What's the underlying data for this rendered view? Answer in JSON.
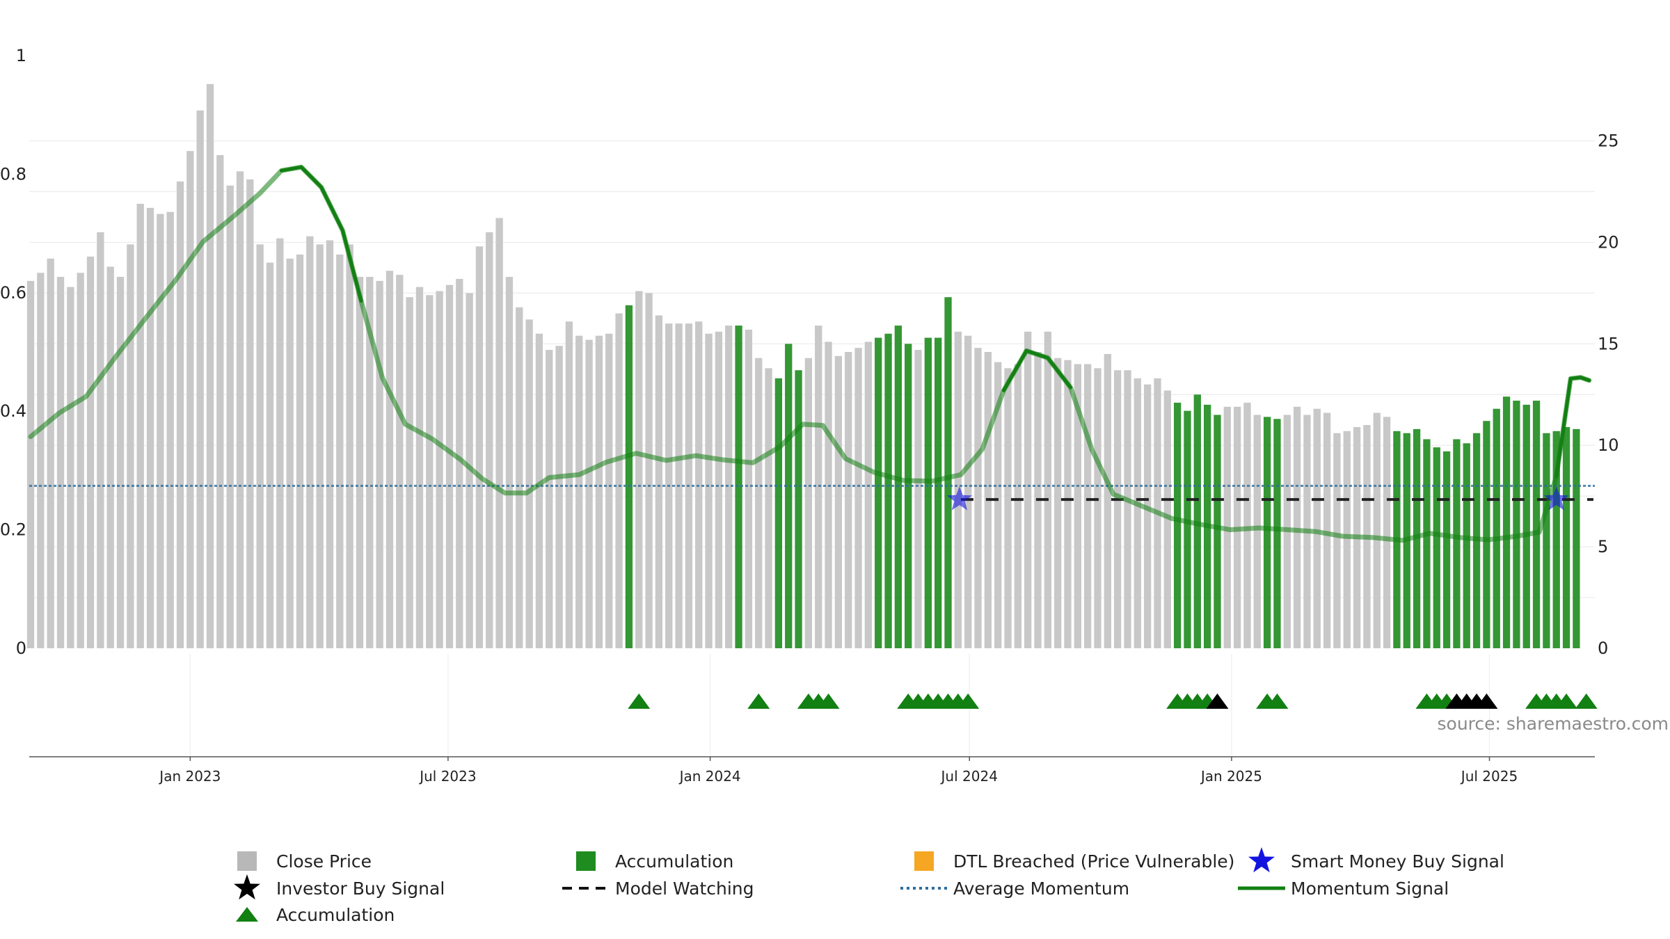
{
  "chart_data": {
    "type": "bar",
    "source_text": "source: sharemaestro.com",
    "left_axis": {
      "ylim": [
        0,
        1
      ],
      "ticks": [
        "0",
        "0.2",
        "0.4",
        "0.6",
        "0.8",
        "1"
      ]
    },
    "right_axis": {
      "ylim": [
        0,
        29.2
      ],
      "ticks": [
        "0",
        "5",
        "10",
        "15",
        "20",
        "25"
      ]
    },
    "x_axis": {
      "start": "2022-09-10",
      "end": "2025-09-13",
      "ticks": [
        {
          "date": "2023-01-01",
          "label": "Jan 2023"
        },
        {
          "date": "2023-07-01",
          "label": "Jul 2023"
        },
        {
          "date": "2024-01-01",
          "label": "Jan 2024"
        },
        {
          "date": "2024-07-01",
          "label": "Jul 2024"
        },
        {
          "date": "2025-01-01",
          "label": "Jan 2025"
        },
        {
          "date": "2025-07-01",
          "label": "Jul 2025"
        }
      ]
    },
    "grid": true,
    "colors": {
      "close": "#c8c8c8",
      "accumulation": "#1e8c1e",
      "dtl": "#f5a623",
      "smart_money": "#1414e0",
      "investor": "#000000",
      "momentum": "#128012",
      "avg_momentum": "#2e6e9e",
      "watching": "#222222"
    },
    "series": [
      {
        "name": "Close Price",
        "start": "2022-09-11",
        "step_days": 7,
        "values": [
          18.1,
          18.5,
          19.2,
          18.3,
          17.8,
          18.5,
          19.3,
          20.5,
          18.8,
          18.3,
          19.9,
          21.9,
          21.7,
          21.4,
          21.5,
          23.0,
          24.5,
          26.5,
          27.8,
          24.3,
          22.8,
          23.5,
          23.1,
          19.9,
          19.0,
          20.2,
          19.2,
          19.4,
          20.3,
          19.9,
          20.1,
          19.4,
          19.9,
          18.3,
          18.3,
          18.1,
          18.6,
          18.4,
          17.3,
          17.8,
          17.4,
          17.6,
          17.9,
          18.2,
          17.5,
          19.8,
          20.5,
          21.2,
          18.3,
          16.8,
          16.2,
          15.5,
          14.7,
          14.9,
          16.1,
          15.4,
          15.2,
          15.4,
          15.5,
          16.5,
          16.9,
          17.6,
          17.5,
          16.4,
          16.0,
          16.0,
          16.0,
          16.1,
          15.5,
          15.6,
          15.9,
          15.9,
          15.7,
          14.3,
          13.8,
          13.3,
          15.0,
          13.7,
          14.3,
          15.9,
          15.1,
          14.4,
          14.6,
          14.8,
          15.1,
          15.3,
          15.5,
          15.9,
          15.0,
          14.7,
          15.3,
          15.3,
          17.3,
          15.6,
          15.4,
          14.8,
          14.6,
          14.1,
          13.8,
          14.0,
          15.6,
          14.6,
          15.6,
          14.3,
          14.2,
          14.0,
          14.0,
          13.8,
          14.5,
          13.7,
          13.7,
          13.3,
          13.0,
          13.3,
          12.7,
          12.1,
          11.7,
          12.5,
          12.0,
          11.5,
          11.9,
          11.9,
          12.1,
          11.5,
          11.4,
          11.3,
          11.5,
          11.9,
          11.5,
          11.8,
          11.6,
          10.6,
          10.7,
          10.9,
          11.0,
          11.6,
          11.4,
          10.7,
          10.6,
          10.8,
          10.3,
          9.9,
          9.7,
          10.3,
          10.1,
          10.6,
          11.2,
          11.8,
          12.4,
          12.2,
          12.0,
          12.2,
          10.6,
          10.7,
          10.9,
          10.8
        ],
        "accumulation_indices": [
          60,
          71,
          75,
          76,
          77,
          85,
          86,
          87,
          88,
          90,
          91,
          92,
          115,
          116,
          117,
          118,
          119,
          124,
          125,
          137,
          138,
          139,
          140,
          141,
          142,
          143,
          144,
          145,
          146,
          147,
          148,
          149,
          150,
          151,
          152,
          153,
          154,
          155,
          156,
          157,
          158,
          159,
          160
        ]
      },
      {
        "name": "Momentum Signal",
        "points": [
          [
            "2022-09-11",
            0.357
          ],
          [
            "2022-10-01",
            0.397
          ],
          [
            "2022-10-20",
            0.425
          ],
          [
            "2022-11-10",
            0.493
          ],
          [
            "2022-12-01",
            0.558
          ],
          [
            "2022-12-22",
            0.622
          ],
          [
            "2023-01-10",
            0.686
          ],
          [
            "2023-01-31",
            0.728
          ],
          [
            "2023-02-19",
            0.768
          ],
          [
            "2023-03-06",
            0.806
          ],
          [
            "2023-03-20",
            0.812
          ],
          [
            "2023-04-03",
            0.778
          ],
          [
            "2023-04-18",
            0.705
          ],
          [
            "2023-05-01",
            0.586
          ],
          [
            "2023-05-16",
            0.456
          ],
          [
            "2023-06-01",
            0.378
          ],
          [
            "2023-06-20",
            0.353
          ],
          [
            "2023-07-10",
            0.318
          ],
          [
            "2023-07-25",
            0.286
          ],
          [
            "2023-08-10",
            0.262
          ],
          [
            "2023-08-25",
            0.262
          ],
          [
            "2023-09-10",
            0.288
          ],
          [
            "2023-10-01",
            0.293
          ],
          [
            "2023-10-20",
            0.314
          ],
          [
            "2023-11-10",
            0.329
          ],
          [
            "2023-12-01",
            0.317
          ],
          [
            "2023-12-22",
            0.325
          ],
          [
            "2024-01-10",
            0.318
          ],
          [
            "2024-01-31",
            0.313
          ],
          [
            "2024-02-19",
            0.34
          ],
          [
            "2024-03-06",
            0.378
          ],
          [
            "2024-03-20",
            0.376
          ],
          [
            "2024-04-05",
            0.32
          ],
          [
            "2024-04-25",
            0.297
          ],
          [
            "2024-05-16",
            0.283
          ],
          [
            "2024-06-05",
            0.282
          ],
          [
            "2024-06-25",
            0.293
          ],
          [
            "2024-07-10",
            0.336
          ],
          [
            "2024-07-25",
            0.435
          ],
          [
            "2024-08-10",
            0.502
          ],
          [
            "2024-08-25",
            0.49
          ],
          [
            "2024-09-10",
            0.44
          ],
          [
            "2024-09-25",
            0.335
          ],
          [
            "2024-10-10",
            0.26
          ],
          [
            "2024-10-31",
            0.239
          ],
          [
            "2024-11-20",
            0.219
          ],
          [
            "2024-12-10",
            0.209
          ],
          [
            "2024-12-31",
            0.2
          ],
          [
            "2025-01-20",
            0.203
          ],
          [
            "2025-02-10",
            0.2
          ],
          [
            "2025-03-01",
            0.197
          ],
          [
            "2025-03-20",
            0.189
          ],
          [
            "2025-04-10",
            0.187
          ],
          [
            "2025-05-01",
            0.182
          ],
          [
            "2025-05-20",
            0.194
          ],
          [
            "2025-06-10",
            0.187
          ],
          [
            "2025-06-30",
            0.183
          ],
          [
            "2025-07-20",
            0.189
          ],
          [
            "2025-08-05",
            0.196
          ],
          [
            "2025-08-17",
            0.29
          ],
          [
            "2025-08-27",
            0.455
          ],
          [
            "2025-09-03",
            0.457
          ],
          [
            "2025-09-09",
            0.452
          ]
        ],
        "bold_ranges": [
          [
            "2023-03-01",
            "2023-05-12"
          ],
          [
            "2024-07-25",
            "2024-09-20"
          ],
          [
            "2025-08-15",
            "2025-09-12"
          ]
        ]
      },
      {
        "name": "Average Momentum",
        "value": 0.274
      },
      {
        "name": "Model Watching",
        "value": 0.251,
        "ranges": [
          [
            "2024-06-25",
            "2025-09-12"
          ]
        ]
      },
      {
        "name": "Smart Money Buy Signal",
        "points": [
          [
            "2024-06-24",
            0.251
          ],
          [
            "2025-08-17",
            0.251
          ]
        ]
      },
      {
        "name": "Accumulation",
        "marker": "triangle",
        "dates": [
          "2023-11-12",
          "2024-02-04",
          "2024-03-10",
          "2024-03-17",
          "2024-03-24",
          "2024-05-19",
          "2024-05-26",
          "2024-06-02",
          "2024-06-09",
          "2024-06-16",
          "2024-06-23",
          "2024-06-30",
          "2024-11-24",
          "2024-12-01",
          "2024-12-08",
          "2024-12-15",
          "2025-01-26",
          "2025-02-02",
          "2025-05-18",
          "2025-05-25",
          "2025-06-01",
          "2025-08-03",
          "2025-08-10",
          "2025-08-17",
          "2025-08-24",
          "2025-09-07"
        ]
      },
      {
        "name": "Investor Buy Signal",
        "marker": "triangle",
        "dates": [
          "2024-12-22",
          "2025-06-08",
          "2025-06-15",
          "2025-06-22",
          "2025-06-29"
        ]
      }
    ],
    "legend": {
      "placement": "bottom",
      "items": [
        {
          "label": "Close Price",
          "symbol": "square",
          "color": "#b8b8b8"
        },
        {
          "label": "Accumulation",
          "symbol": "square",
          "color": "#1e8c1e"
        },
        {
          "label": "DTL Breached (Price Vulnerable)",
          "symbol": "square",
          "color": "#f5a623"
        },
        {
          "label": "Smart Money Buy Signal",
          "symbol": "star",
          "color": "#1414e0"
        },
        {
          "label": "Investor Buy Signal",
          "symbol": "star",
          "color": "#000000"
        },
        {
          "label": "Model Watching",
          "symbol": "dashes",
          "color": "#111111"
        },
        {
          "label": "Average Momentum",
          "symbol": "dots",
          "color": "#2e6e9e"
        },
        {
          "label": "Momentum Signal",
          "symbol": "line",
          "color": "#128012"
        },
        {
          "label": "Accumulation",
          "symbol": "triangle",
          "color": "#128012"
        }
      ]
    }
  }
}
